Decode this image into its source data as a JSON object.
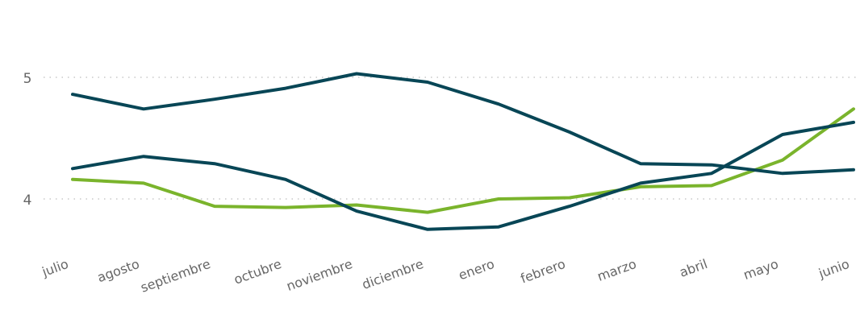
{
  "chart_data": {
    "type": "line",
    "title": "",
    "xlabel": "",
    "ylabel": "",
    "categories": [
      "julio",
      "agosto",
      "septiembre",
      "octubre",
      "noviembre",
      "diciembre",
      "enero",
      "febrero",
      "marzo",
      "abril",
      "mayo",
      "junio"
    ],
    "y_ticks": [
      "4",
      "5"
    ],
    "ylim": [
      3.35,
      5.35
    ],
    "grid": "horizontal dotted",
    "legend": "none",
    "series": [
      {
        "color": "#7ab42c",
        "values": [
          4.16,
          4.13,
          3.94,
          3.93,
          3.95,
          3.89,
          4.0,
          4.01,
          4.1,
          4.11,
          4.32,
          4.74
        ]
      },
      {
        "color": "#084656",
        "values": [
          4.86,
          4.74,
          4.82,
          4.91,
          5.03,
          4.96,
          4.78,
          4.55,
          4.29,
          4.28,
          4.21,
          4.24
        ]
      },
      {
        "color": "#084656",
        "values": [
          4.25,
          4.35,
          4.29,
          4.16,
          3.9,
          3.75,
          3.77,
          3.94,
          4.13,
          4.21,
          4.53,
          4.63
        ]
      }
    ]
  }
}
